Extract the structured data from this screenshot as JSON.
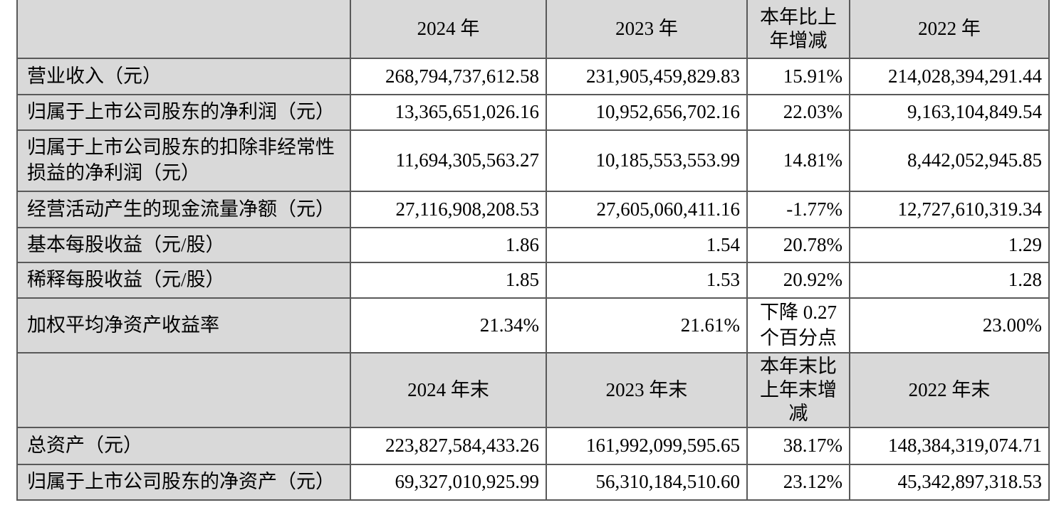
{
  "colors": {
    "page_bg": "#ffffff",
    "header_fill": "#d9d9d9",
    "body_fill": "#ffffff",
    "grid": "#595959",
    "text": "#000000"
  },
  "table": {
    "description": "三年主要会计数据表",
    "sections": [
      {
        "header": [
          "",
          "2024 年",
          "2023 年",
          "本年比上\n年增减",
          "2022 年"
        ],
        "rows": [
          [
            "营业收入（元）",
            "268,794,737,612.58",
            "231,905,459,829.83",
            "15.91%",
            "214,028,394,291.44"
          ],
          [
            "归属于上市公司股东的净利润（元）",
            "13,365,651,026.16",
            "10,952,656,702.16",
            "22.03%",
            "9,163,104,849.54"
          ],
          [
            "归属于上市公司股东的扣除非经常性\n损益的净利润（元）",
            "11,694,305,563.27",
            "10,185,553,553.99",
            "14.81%",
            "8,442,052,945.85"
          ],
          [
            "经营活动产生的现金流量净额（元）",
            "27,116,908,208.53",
            "27,605,060,411.16",
            "-1.77%",
            "12,727,610,319.34"
          ],
          [
            "基本每股收益（元/股）",
            "1.86",
            "1.54",
            "20.78%",
            "1.29"
          ],
          [
            "稀释每股收益（元/股）",
            "1.85",
            "1.53",
            "20.92%",
            "1.28"
          ],
          [
            "加权平均净资产收益率",
            "21.34%",
            "21.61%",
            "下降 0.27\n个百分点",
            "23.00%"
          ]
        ]
      },
      {
        "header": [
          "",
          "2024 年末",
          "2023 年末",
          "本年末比\n上年末增\n减",
          "2022 年末"
        ],
        "rows": [
          [
            "总资产（元）",
            "223,827,584,433.26",
            "161,992,099,595.65",
            "38.17%",
            "148,384,319,074.71"
          ],
          [
            "归属于上市公司股东的净资产（元）",
            "69,327,010,925.99",
            "56,310,184,510.60",
            "23.12%",
            "45,342,897,318.53"
          ]
        ]
      }
    ]
  }
}
